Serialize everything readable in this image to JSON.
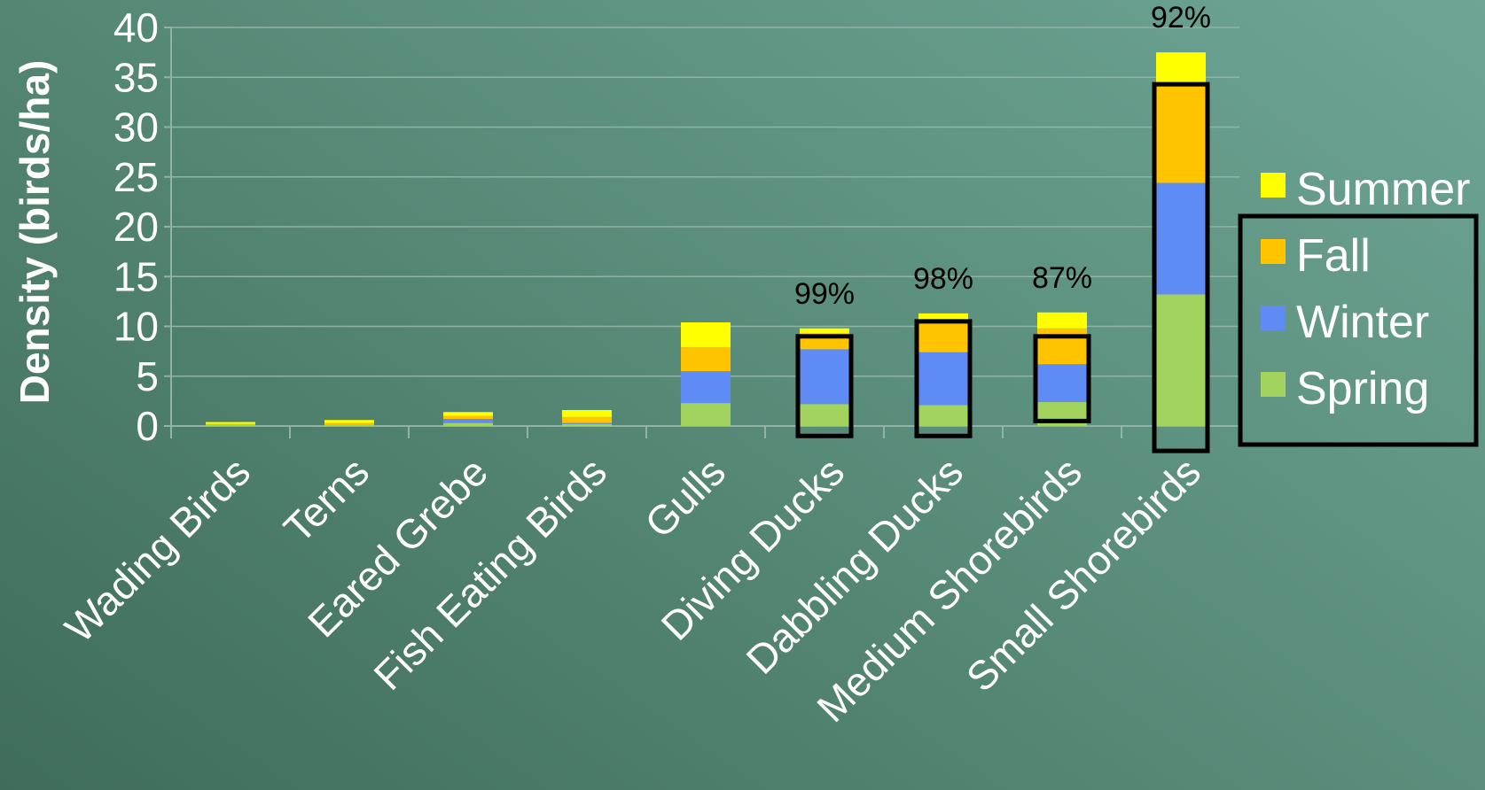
{
  "chart_data": {
    "type": "bar",
    "stacked": true,
    "ylabel": "Density (birds/ha)",
    "xlabel": "",
    "ylim": [
      0,
      40
    ],
    "yticks": [
      0,
      5,
      10,
      15,
      20,
      25,
      30,
      35,
      40
    ],
    "grid": true,
    "legend_position": "right",
    "categories": [
      "Wading Birds",
      "Terns",
      "Eared Grebe",
      "Fish Eating Birds",
      "Gulls",
      "Diving Ducks",
      "Dabbling Ducks",
      "Medium Shorebirds",
      "Small Shorebirds"
    ],
    "series": [
      {
        "name": "Spring",
        "color": "#a3d35f",
        "values": [
          0.1,
          0.1,
          0.3,
          0.2,
          2.3,
          2.2,
          2.1,
          2.4,
          13.2
        ]
      },
      {
        "name": "Winter",
        "color": "#5f8bf5",
        "values": [
          0.0,
          0.0,
          0.4,
          0.1,
          3.2,
          5.5,
          5.3,
          3.8,
          11.2
        ]
      },
      {
        "name": "Fall",
        "color": "#ffc300",
        "values": [
          0.1,
          0.2,
          0.3,
          0.6,
          2.4,
          1.6,
          3.0,
          3.6,
          9.9
        ]
      },
      {
        "name": "Summer",
        "color": "#ffff00",
        "values": [
          0.2,
          0.3,
          0.4,
          0.7,
          2.5,
          0.5,
          0.9,
          1.6,
          3.2
        ]
      }
    ],
    "annotations": [
      {
        "category": "Diving Ducks",
        "text": "99%",
        "highlight": [
          -1,
          9
        ]
      },
      {
        "category": "Dabbling Ducks",
        "text": "98%",
        "highlight": [
          -1,
          10.5
        ]
      },
      {
        "category": "Medium Shorebirds",
        "text": "87%",
        "highlight": [
          0.5,
          9
        ]
      },
      {
        "category": "Small Shorebirds",
        "text": "92%",
        "highlight": [
          -2.5,
          34.3
        ]
      }
    ]
  }
}
